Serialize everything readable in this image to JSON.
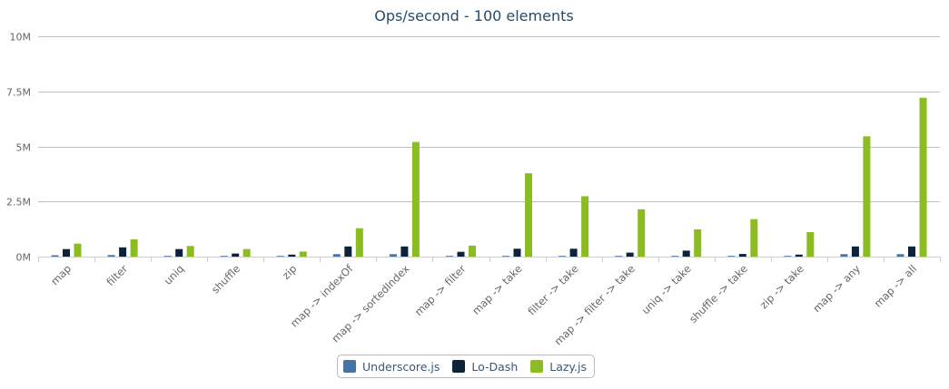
{
  "chart_data": {
    "type": "bar",
    "title": "Ops/second - 100 elements",
    "xlabel": "",
    "ylabel": "",
    "ylim": [
      0,
      10000000
    ],
    "yticks": [
      {
        "value": 0,
        "label": "0M"
      },
      {
        "value": 2500000,
        "label": "2.5M"
      },
      {
        "value": 5000000,
        "label": "5M"
      },
      {
        "value": 7500000,
        "label": "7.5M"
      },
      {
        "value": 10000000,
        "label": "10M"
      }
    ],
    "grid": true,
    "legend_position": "bottom-center",
    "categories": [
      "map",
      "filter",
      "uniq",
      "shuffle",
      "zip",
      "map -> indexOf",
      "map -> sortedIndex",
      "map -> filter",
      "map -> take",
      "filter -> take",
      "map -> filter -> take",
      "uniq -> take",
      "shuffle -> take",
      "zip -> take",
      "map -> any",
      "map -> all"
    ],
    "series": [
      {
        "name": "Underscore.js",
        "color": "#4572a7",
        "values": [
          60000,
          70000,
          20000,
          20000,
          20000,
          110000,
          110000,
          10000,
          10000,
          10000,
          10000,
          10000,
          10000,
          10000,
          110000,
          110000
        ]
      },
      {
        "name": "Lo-Dash",
        "color": "#0d233a",
        "values": [
          340000,
          420000,
          340000,
          140000,
          90000,
          460000,
          460000,
          220000,
          360000,
          360000,
          180000,
          270000,
          120000,
          90000,
          460000,
          460000
        ]
      },
      {
        "name": "Lazy.js",
        "color": "#8bbc21",
        "values": [
          590000,
          780000,
          480000,
          340000,
          230000,
          1290000,
          5200000,
          500000,
          3780000,
          2740000,
          2150000,
          1240000,
          1700000,
          1110000,
          5460000,
          7210000
        ]
      }
    ]
  }
}
